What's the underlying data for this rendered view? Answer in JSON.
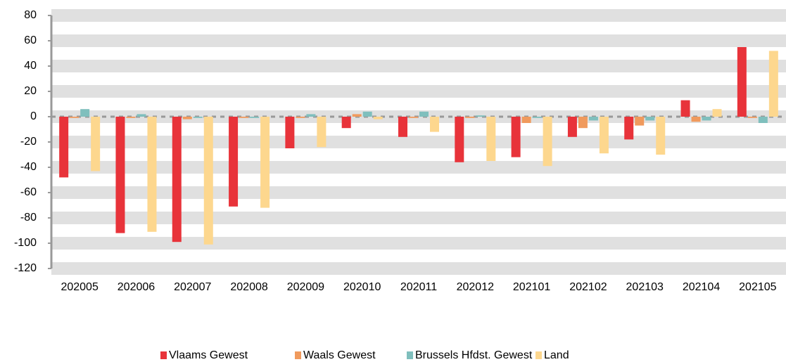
{
  "chart_data": {
    "type": "bar",
    "categories": [
      "202005",
      "202006",
      "202007",
      "202008",
      "202009",
      "202010",
      "202011",
      "202012",
      "202101",
      "202102",
      "202103",
      "202104",
      "202105"
    ],
    "series": [
      {
        "name": "Vlaams Gewest",
        "color": "#e8333a",
        "values": [
          -48,
          -92,
          -99,
          -71,
          -25,
          -9,
          -16,
          -36,
          -32,
          -16,
          -18,
          13,
          55
        ]
      },
      {
        "name": "Waals Gewest",
        "color": "#f09a5d",
        "values": [
          -1,
          -1,
          -2,
          -1,
          -1,
          2,
          -1,
          -1,
          -5,
          -9,
          -7,
          -4,
          -1
        ]
      },
      {
        "name": "Brussels Hfdst. Gewest",
        "color": "#7fbfbd",
        "values": [
          6,
          2,
          -1,
          -1,
          2,
          4,
          4,
          1,
          -1,
          -3,
          -3,
          -3,
          -5
        ]
      },
      {
        "name": "Land",
        "color": "#fdd78e",
        "values": [
          -43,
          -91,
          -101,
          -72,
          -24,
          -2,
          -12,
          -35,
          -39,
          -29,
          -30,
          6,
          52
        ]
      }
    ],
    "ylim": [
      -120,
      80
    ],
    "yticks": [
      -120,
      -100,
      -80,
      -60,
      -40,
      -20,
      0,
      20,
      40,
      60,
      80
    ],
    "grid": true,
    "legend": "bottom"
  }
}
